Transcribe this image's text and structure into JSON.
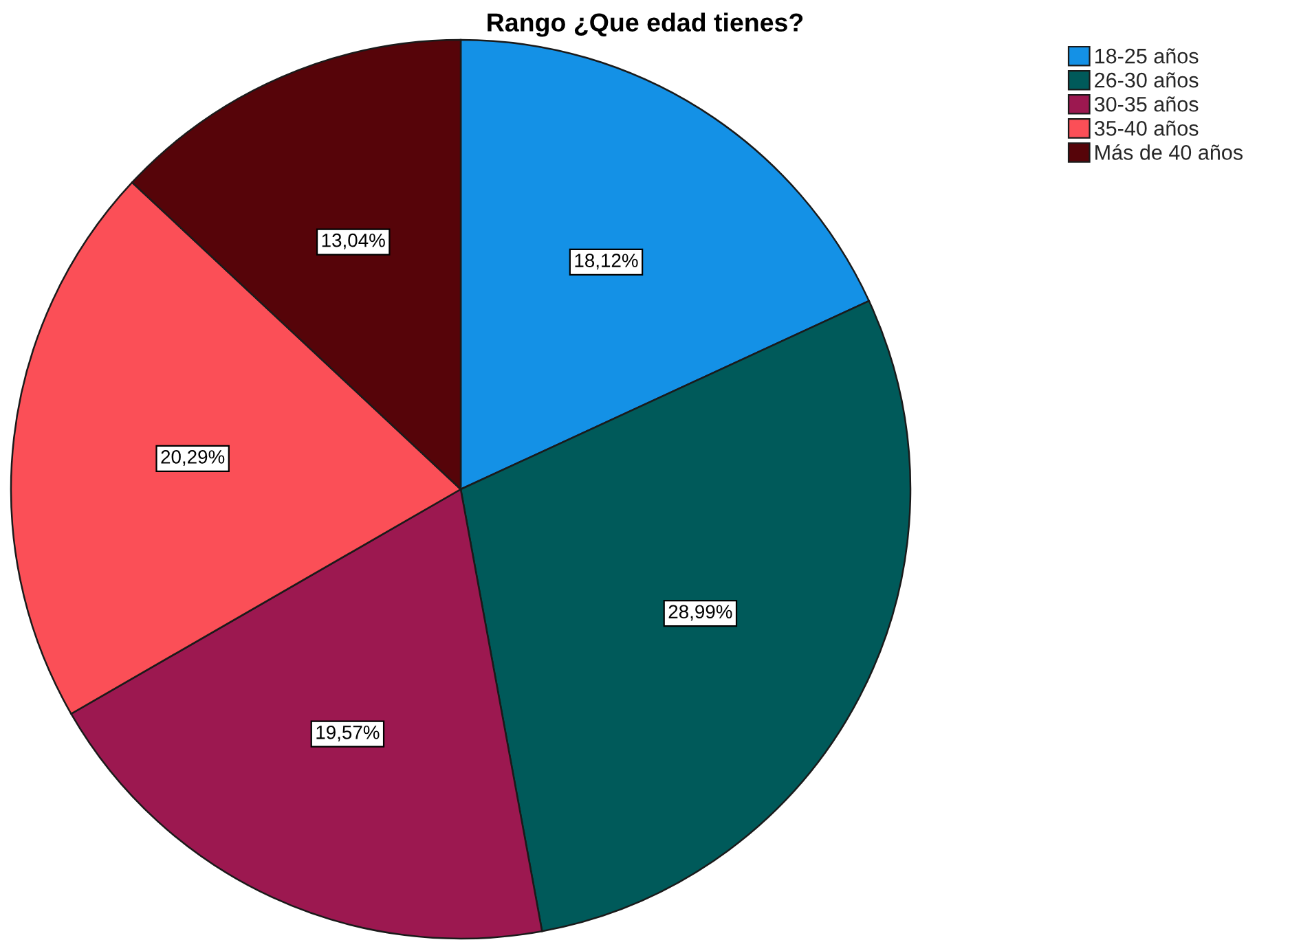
{
  "chart_data": {
    "type": "pie",
    "title": "Rango ¿Que edad tienes?",
    "categories": [
      "18-25 años",
      "26-30 años",
      "30-35 años",
      "35-40 años",
      "Más de 40 años"
    ],
    "values": [
      18.12,
      28.99,
      19.57,
      20.29,
      13.04
    ],
    "colors": [
      "#1491e6",
      "#005a5a",
      "#9c1850",
      "#fb4f57",
      "#560409"
    ],
    "value_labels": [
      "18,12%",
      "28,99%",
      "19,57%",
      "20,29%",
      "13,04%"
    ],
    "legend": "top right"
  }
}
